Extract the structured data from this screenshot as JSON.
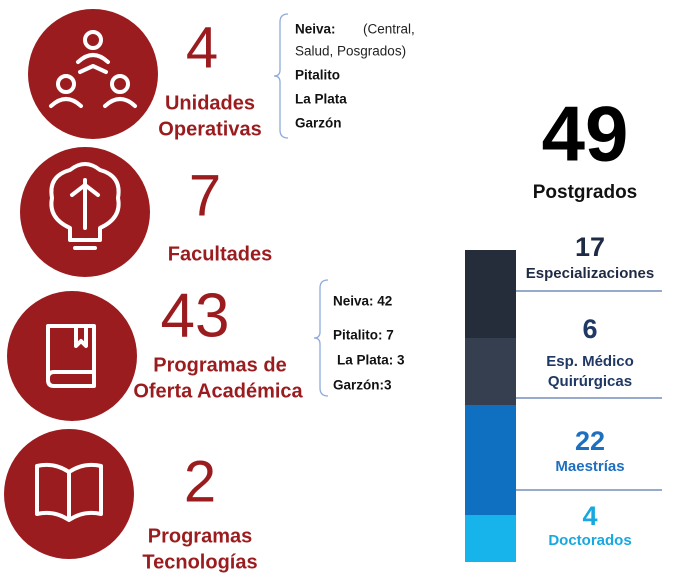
{
  "items": [
    {
      "number": "4",
      "label": [
        "Unidades",
        "Operativas"
      ]
    },
    {
      "number": "7",
      "label": [
        "Facultades"
      ]
    },
    {
      "number": "43",
      "label": [
        "Programas de",
        "Oferta Académica"
      ]
    },
    {
      "number": "2",
      "label": [
        "Programas",
        "Tecnologías"
      ]
    }
  ],
  "unidades_detail": {
    "first": "Neiva:",
    "first_note": "(Central,",
    "note_cont": "Salud, Posgrados)",
    "others": [
      "Pitalito",
      "La Plata",
      "Garzón"
    ]
  },
  "programas_detail": [
    "Neiva: 42",
    "Pitalito: 7",
    "La Plata: 3",
    "Garzón:3"
  ],
  "postgrados": {
    "total": "49",
    "label": "Postgrados",
    "segments": [
      {
        "value": "17",
        "label": [
          "Especializaciones"
        ]
      },
      {
        "value": "6",
        "label": [
          "Esp. Médico",
          "Quirúrgicas"
        ]
      },
      {
        "value": "22",
        "label": [
          "Maestrías"
        ]
      },
      {
        "value": "4",
        "label": [
          "Doctorados"
        ]
      }
    ]
  }
}
